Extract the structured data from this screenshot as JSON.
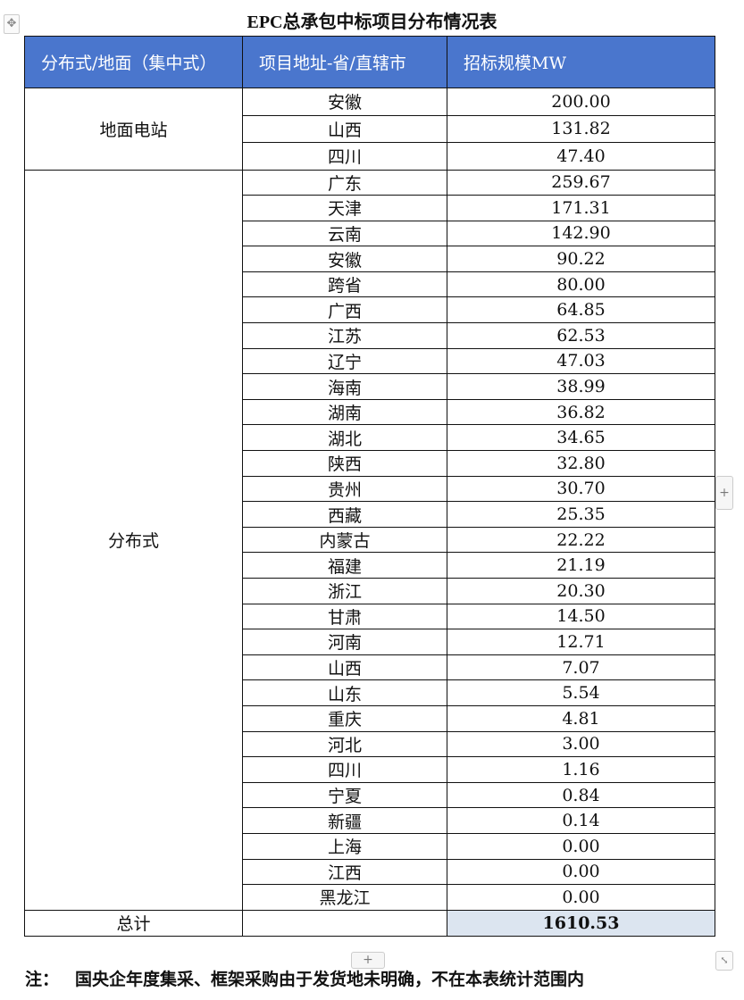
{
  "title": "EPC总承包中标项目分布情况表",
  "headers": [
    "分布式/地面（集中式）",
    "项目地址-省/直辖市",
    "招标规模MW"
  ],
  "groups": [
    {
      "name": "地面电站",
      "rows": [
        [
          "安徽",
          "200.00"
        ],
        [
          "山西",
          "131.82"
        ],
        [
          "四川",
          "47.40"
        ]
      ]
    },
    {
      "name": "分布式",
      "rows": [
        [
          "广东",
          "259.67"
        ],
        [
          "天津",
          "171.31"
        ],
        [
          "云南",
          "142.90"
        ],
        [
          "安徽",
          "90.22"
        ],
        [
          "跨省",
          "80.00"
        ],
        [
          "广西",
          "64.85"
        ],
        [
          "江苏",
          "62.53"
        ],
        [
          "辽宁",
          "47.03"
        ],
        [
          "海南",
          "38.99"
        ],
        [
          "湖南",
          "36.82"
        ],
        [
          "湖北",
          "34.65"
        ],
        [
          "陕西",
          "32.80"
        ],
        [
          "贵州",
          "30.70"
        ],
        [
          "西藏",
          "25.35"
        ],
        [
          "内蒙古",
          "22.22"
        ],
        [
          "福建",
          "21.19"
        ],
        [
          "浙江",
          "20.30"
        ],
        [
          "甘肃",
          "14.50"
        ],
        [
          "河南",
          "12.71"
        ],
        [
          "山西",
          "7.07"
        ],
        [
          "山东",
          "5.54"
        ],
        [
          "重庆",
          "4.81"
        ],
        [
          "河北",
          "3.00"
        ],
        [
          "四川",
          "1.16"
        ],
        [
          "宁夏",
          "0.84"
        ],
        [
          "新疆",
          "0.14"
        ],
        [
          "上海",
          "0.00"
        ],
        [
          "江西",
          "0.00"
        ],
        [
          "黑龙江",
          "0.00"
        ]
      ]
    }
  ],
  "total": {
    "label": "总计",
    "value": "1610.53"
  },
  "note": {
    "label": "注：",
    "text": "国央企年度集采、框架采购由于发货地未明确，不在本表统计范围内"
  },
  "icons": {
    "move": "move-icon",
    "add_row": "plus-icon",
    "add_column": "plus-icon",
    "resize": "resize-icon"
  },
  "colors": {
    "header_bg": "#4a76cd",
    "total_bg": "#dce5f0"
  }
}
